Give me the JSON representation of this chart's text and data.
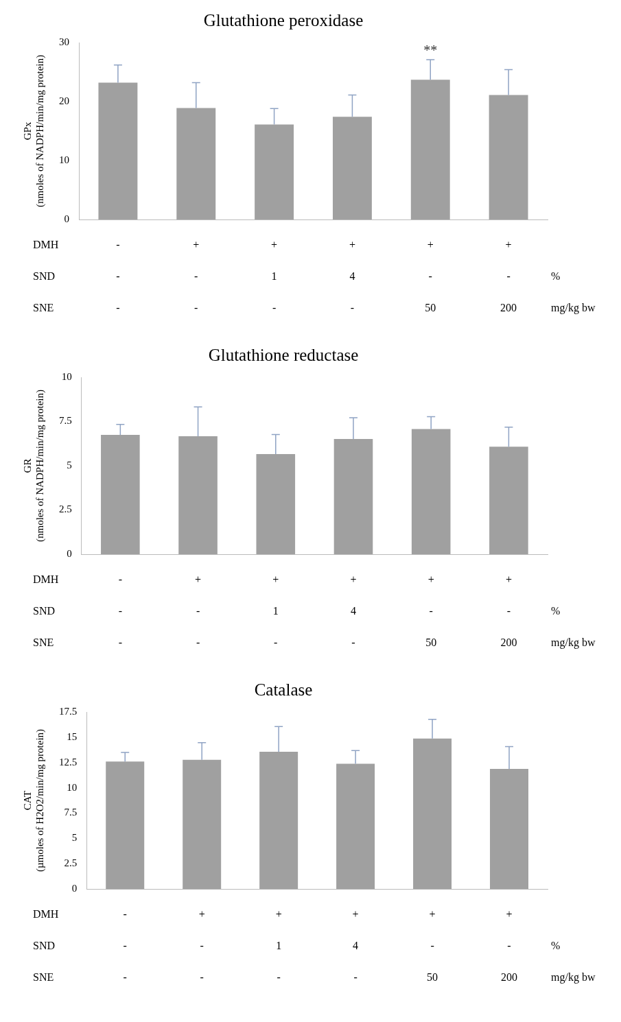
{
  "chart_data": [
    {
      "type": "bar",
      "title": "Glutathione peroxidase",
      "ylabel": "GPx\n(nmoles of NADPH/min/mg protein)",
      "categories": [
        "-\n-\n-",
        "+\n-\n-",
        "+\n1\n-",
        "+\n4\n-",
        "+\n-\n50",
        "+\n-\n200"
      ],
      "values": [
        23.2,
        18.9,
        16.1,
        17.4,
        23.7,
        21.1
      ],
      "errors": [
        3.0,
        4.3,
        2.7,
        3.7,
        3.4,
        4.3
      ],
      "color": "#a0a0a0",
      "ylim": [
        0,
        30
      ],
      "yticks": [
        0,
        10,
        20,
        30
      ],
      "grid": false,
      "legend": false,
      "annotations": [
        "DMH",
        "SND",
        "SNE",
        "%",
        "mg/kg bw",
        {
          "text": "**",
          "x": "+\n-\n50",
          "y": 27.1
        }
      ]
    },
    {
      "type": "bar",
      "title": "Glutathione reductase",
      "ylabel": "GR\n(nmoles of NADPH/min/mg protein)",
      "categories": [
        "-\n-\n-",
        "+\n-\n-",
        "+\n1\n-",
        "+\n4\n-",
        "+\n-\n50",
        "+\n-\n200"
      ],
      "values": [
        6.74,
        6.67,
        5.66,
        6.51,
        7.07,
        6.08
      ],
      "errors": [
        0.6,
        1.65,
        1.1,
        1.2,
        0.7,
        1.1
      ],
      "color": "#a0a0a0",
      "ylim": [
        0,
        10
      ],
      "yticks": [
        0,
        2.5,
        5,
        7.5,
        10
      ],
      "grid": false,
      "legend": false,
      "annotations": [
        "DMH",
        "SND",
        "SNE",
        "%",
        "mg/kg bw"
      ]
    },
    {
      "type": "bar",
      "title": "Catalase",
      "ylabel": "CAT\n(µmoles of H2O2/min/mg protein)",
      "categories": [
        "-\n-\n-",
        "+\n-\n-",
        "+\n1\n-",
        "+\n4\n-",
        "+\n-\n50",
        "+\n-\n200"
      ],
      "values": [
        12.6,
        12.77,
        13.56,
        12.38,
        14.87,
        11.87
      ],
      "errors": [
        0.9,
        1.7,
        2.5,
        1.3,
        1.9,
        2.2
      ],
      "color": "#a0a0a0",
      "ylim": [
        0,
        17.5
      ],
      "yticks": [
        0,
        2.5,
        5,
        7.5,
        10,
        12.5,
        15,
        17.5
      ],
      "grid": false,
      "legend": false,
      "annotations": [
        "DMH",
        "SND",
        "SNE",
        "%",
        "mg/kg bw"
      ]
    }
  ]
}
